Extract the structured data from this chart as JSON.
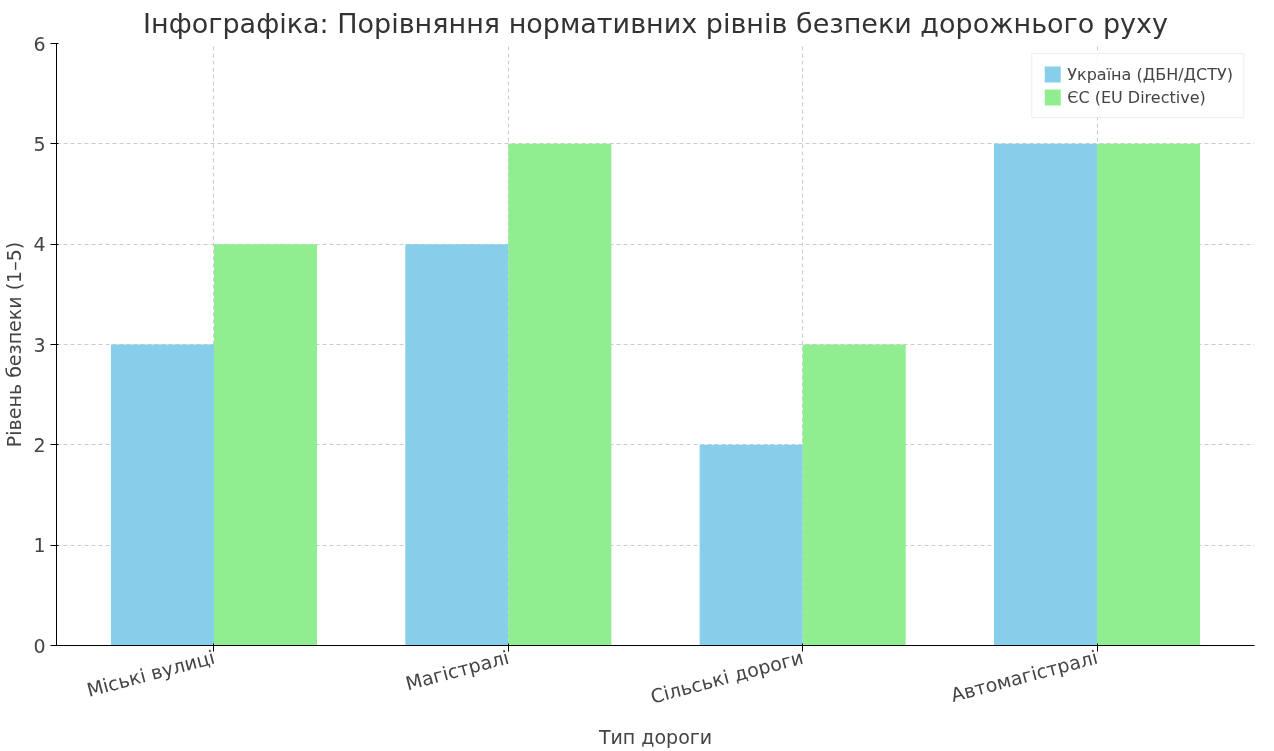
{
  "chart_data": {
    "type": "bar",
    "title": "Інфографіка: Порівняння нормативних рівнів безпеки дорожнього руху",
    "xlabel": "Тип дороги",
    "ylabel": "Рівень безпеки (1–5)",
    "categories": [
      "Міські вулиці",
      "Магістралі",
      "Сільські дороги",
      "Автомагістралі"
    ],
    "series": [
      {
        "name": "Україна (ДБН/ДСТУ)",
        "color": "#87ceeb",
        "values": [
          3,
          4,
          2,
          5
        ]
      },
      {
        "name": "ЄС (EU Directive)",
        "color": "#90ee90",
        "values": [
          4,
          5,
          3,
          5
        ]
      }
    ],
    "ylim": [
      0,
      6
    ],
    "yticks": [
      0,
      1,
      2,
      3,
      4,
      5,
      6
    ],
    "grid": true,
    "legend": "top right"
  }
}
